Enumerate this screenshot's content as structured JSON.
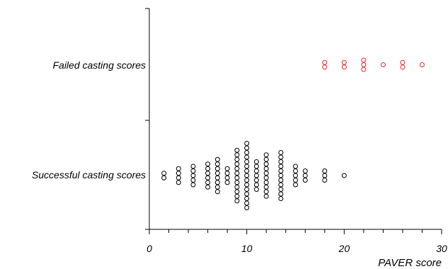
{
  "chart_data": {
    "type": "scatter",
    "subtype": "dot-strip",
    "xlabel": "PAVER score",
    "xlim": [
      0,
      30
    ],
    "xticks": [
      0,
      10,
      20,
      30
    ],
    "categories": [
      "Failed casting scores",
      "Successful casting scores"
    ],
    "series": [
      {
        "category": "Failed casting scores",
        "color": "#e8262b",
        "points": [
          {
            "x": 18,
            "count": 2
          },
          {
            "x": 20,
            "count": 2
          },
          {
            "x": 22,
            "count": 3
          },
          {
            "x": 24,
            "count": 1
          },
          {
            "x": 26,
            "count": 2
          },
          {
            "x": 28,
            "count": 1
          }
        ]
      },
      {
        "category": "Successful casting scores",
        "color": "#000000",
        "points": [
          {
            "x": 1.5,
            "count": 2
          },
          {
            "x": 3,
            "count": 4
          },
          {
            "x": 4.5,
            "count": 5
          },
          {
            "x": 6,
            "count": 6
          },
          {
            "x": 7,
            "count": 8
          },
          {
            "x": 8,
            "count": 4
          },
          {
            "x": 9,
            "count": 12
          },
          {
            "x": 10,
            "count": 15
          },
          {
            "x": 11,
            "count": 7
          },
          {
            "x": 12,
            "count": 10
          },
          {
            "x": 13.5,
            "count": 11
          },
          {
            "x": 15,
            "count": 5
          },
          {
            "x": 16,
            "count": 3
          },
          {
            "x": 18,
            "count": 3
          },
          {
            "x": 20,
            "count": 1
          }
        ]
      }
    ]
  }
}
